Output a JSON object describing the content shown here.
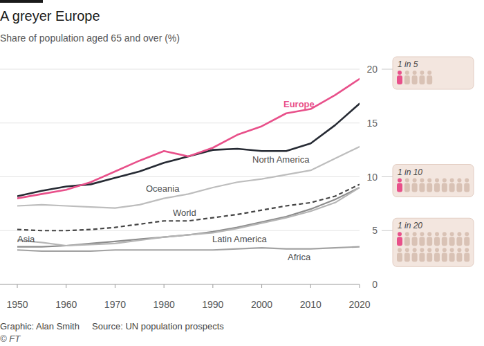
{
  "chart_data": {
    "type": "line",
    "title": "A greyer Europe",
    "subtitle": "Share of population aged 65 and over (%)",
    "credit": "Graphic: Alan Smith",
    "source": "Source: UN population prospects",
    "copyright": "© FT",
    "x": [
      1950,
      1955,
      1960,
      1965,
      1970,
      1975,
      1980,
      1985,
      1990,
      1995,
      2000,
      2005,
      2010,
      2015,
      2020
    ],
    "xlim": [
      1950,
      2020
    ],
    "xticks": [
      1950,
      1960,
      1970,
      1980,
      1990,
      2000,
      2010,
      2020
    ],
    "ylim": [
      0,
      20
    ],
    "yticks": [
      0,
      5,
      10,
      15,
      20
    ],
    "grid": true,
    "series": [
      {
        "name": "Europe",
        "color": "#e8508a",
        "line_style": "solid",
        "values": [
          8.0,
          8.4,
          8.8,
          9.5,
          10.5,
          11.5,
          12.4,
          11.9,
          12.7,
          13.9,
          14.7,
          15.9,
          16.3,
          17.6,
          19.1
        ]
      },
      {
        "name": "North America",
        "color": "#262a33",
        "line_style": "solid",
        "values": [
          8.2,
          8.7,
          9.1,
          9.3,
          9.9,
          10.5,
          11.3,
          11.9,
          12.5,
          12.6,
          12.4,
          12.4,
          13.1,
          14.8,
          16.8
        ]
      },
      {
        "name": "Oceania",
        "color": "#bdbdbd",
        "line_style": "solid",
        "values": [
          7.3,
          7.4,
          7.3,
          7.2,
          7.1,
          7.4,
          8.0,
          8.4,
          9.0,
          9.5,
          9.8,
          10.2,
          10.6,
          11.7,
          12.8
        ]
      },
      {
        "name": "World",
        "color": "#444444",
        "line_style": "dashed",
        "values": [
          5.1,
          5.0,
          5.0,
          5.1,
          5.3,
          5.6,
          5.9,
          5.9,
          6.2,
          6.5,
          6.9,
          7.3,
          7.6,
          8.2,
          9.3
        ]
      },
      {
        "name": "Asia",
        "color": "#b5b5b5",
        "line_style": "solid",
        "values": [
          4.1,
          3.9,
          3.6,
          3.7,
          3.8,
          4.1,
          4.4,
          4.6,
          4.8,
          5.2,
          5.7,
          6.2,
          6.8,
          7.6,
          9.0
        ]
      },
      {
        "name": "Latin America",
        "color": "#8c8c8c",
        "line_style": "solid",
        "values": [
          3.5,
          3.5,
          3.6,
          3.8,
          4.0,
          4.2,
          4.4,
          4.6,
          4.9,
          5.3,
          5.8,
          6.3,
          7.0,
          7.9,
          9.0
        ]
      },
      {
        "name": "Africa",
        "color": "#a3a3a3",
        "line_style": "solid",
        "values": [
          3.2,
          3.1,
          3.1,
          3.1,
          3.2,
          3.2,
          3.2,
          3.2,
          3.2,
          3.3,
          3.4,
          3.3,
          3.3,
          3.4,
          3.5
        ]
      }
    ],
    "annotations": [
      {
        "text": "1 in 5",
        "y": 20,
        "count": 5
      },
      {
        "text": "1 in 10",
        "y": 10,
        "count": 10
      },
      {
        "text": "1 in 20",
        "y": 5,
        "count": 20
      }
    ]
  }
}
